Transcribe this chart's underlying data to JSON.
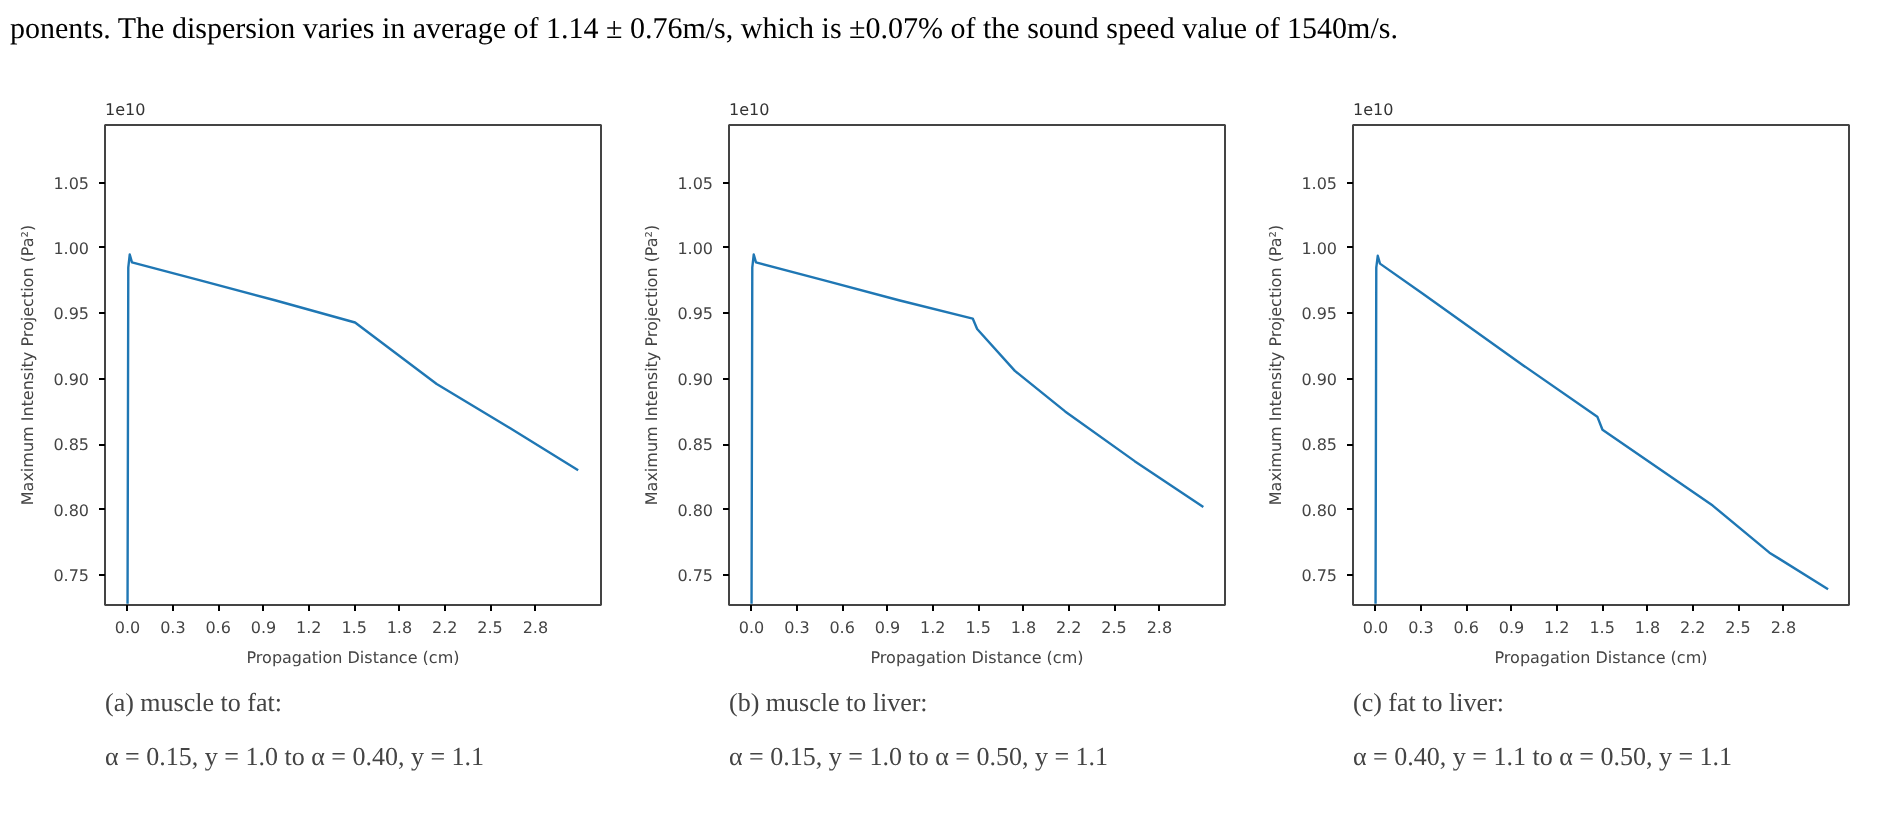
{
  "chart_data": [
    {
      "type": "line",
      "title": "(a) muscle to fat:",
      "subtitle": "α = 0.15, y = 1.0 to α = 0.40, y = 1.1",
      "xlabel": "Propagation Distance (cm)",
      "ylabel": "Maximum Intensity Projection (Pa²)",
      "annotations": [
        "ponents. The dispersion varies in average of 1.14 ± 0.76m/s, which is ±0.07% of the sound speed value of 1540m/s.",
        "1e10"
      ],
      "x": [
        0,
        0.005,
        0.015,
        0.03,
        0.5,
        1.0,
        1.544,
        2.098,
        2.6,
        3.058
      ],
      "series": [
        {
          "color": "#1f77b4",
          "values": [
            0.728,
            0.985,
            0.995,
            0.989,
            0.975,
            0.96,
            0.943,
            0.896,
            0.862,
            0.83
          ]
        }
      ],
      "xlim": [
        -0.153,
        3.213
      ],
      "ylim": [
        0.727,
        1.094
      ],
      "xticks": [
        {
          "value": 0,
          "label": "0.0"
        },
        {
          "value": 0.3075,
          "label": "0.3"
        },
        {
          "value": 0.615,
          "label": "0.6"
        },
        {
          "value": 0.9225,
          "label": "0.9"
        },
        {
          "value": 1.23,
          "label": "1.2"
        },
        {
          "value": 1.5375,
          "label": "1.5"
        },
        {
          "value": 1.845,
          "label": "1.8"
        },
        {
          "value": 2.1525,
          "label": "2.2"
        },
        {
          "value": 2.46,
          "label": "2.5"
        },
        {
          "value": 2.7675,
          "label": "2.8"
        }
      ],
      "yticks": [
        0.75,
        {
          "value": 0.8,
          "label": "0.80"
        },
        0.85,
        {
          "value": 0.9,
          "label": "0.90"
        },
        0.95,
        {
          "value": 1.0,
          "label": "1.00"
        },
        1.05
      ],
      "grid": false,
      "marker": "none",
      "line_style": "solid"
    },
    {
      "type": "line",
      "title": "(b) muscle to liver:",
      "subtitle": "α = 0.15, y = 1.0 to α = 0.50, y = 1.1",
      "xlabel": "Propagation Distance (cm)",
      "ylabel": "Maximum Intensity Projection (Pa²)",
      "annotations": [
        "1e10"
      ],
      "x": [
        0,
        0.005,
        0.015,
        0.03,
        0.5,
        1.0,
        1.501,
        1.531,
        1.787,
        2.128,
        2.6,
        3.066
      ],
      "series": [
        {
          "color": "#1f77b4",
          "values": [
            0.728,
            0.985,
            0.995,
            0.989,
            0.975,
            0.96,
            0.946,
            0.938,
            0.906,
            0.875,
            0.837,
            0.802
          ]
        }
      ],
      "xlim": [
        -0.153,
        3.213
      ],
      "ylim": [
        0.727,
        1.094
      ],
      "xticks": [
        {
          "value": 0,
          "label": "0.0"
        },
        {
          "value": 0.3075,
          "label": "0.3"
        },
        {
          "value": 0.615,
          "label": "0.6"
        },
        {
          "value": 0.9225,
          "label": "0.9"
        },
        {
          "value": 1.23,
          "label": "1.2"
        },
        {
          "value": 1.5375,
          "label": "1.5"
        },
        {
          "value": 1.845,
          "label": "1.8"
        },
        {
          "value": 2.1525,
          "label": "2.2"
        },
        {
          "value": 2.46,
          "label": "2.5"
        },
        {
          "value": 2.7675,
          "label": "2.8"
        }
      ],
      "yticks": [
        0.75,
        {
          "value": 0.8,
          "label": "0.80"
        },
        0.85,
        {
          "value": 0.9,
          "label": "0.90"
        },
        0.95,
        {
          "value": 1.0,
          "label": "1.00"
        },
        1.05
      ],
      "grid": false,
      "marker": "none",
      "line_style": "solid"
    },
    {
      "type": "line",
      "title": "(c) fat to liver:",
      "subtitle": "α = 0.40, y = 1.1 to α = 0.50, y = 1.1",
      "xlabel": "Propagation Distance (cm)",
      "ylabel": "Maximum Intensity Projection (Pa²)",
      "annotations": [
        "1e10"
      ],
      "x": [
        0,
        0.005,
        0.015,
        0.03,
        0.321,
        1.005,
        1.505,
        1.54,
        2.288,
        2.673,
        3.071
      ],
      "series": [
        {
          "color": "#1f77b4",
          "values": [
            0.728,
            0.985,
            0.994,
            0.988,
            0.965,
            0.91,
            0.871,
            0.861,
            0.803,
            0.767,
            0.739
          ]
        }
      ],
      "xlim": [
        -0.153,
        3.213
      ],
      "ylim": [
        0.727,
        1.094
      ],
      "xticks": [
        {
          "value": 0,
          "label": "0.0"
        },
        {
          "value": 0.3075,
          "label": "0.3"
        },
        {
          "value": 0.615,
          "label": "0.6"
        },
        {
          "value": 0.9225,
          "label": "0.9"
        },
        {
          "value": 1.23,
          "label": "1.2"
        },
        {
          "value": 1.5375,
          "label": "1.5"
        },
        {
          "value": 1.845,
          "label": "1.8"
        },
        {
          "value": 2.1525,
          "label": "2.2"
        },
        {
          "value": 2.46,
          "label": "2.5"
        },
        {
          "value": 2.7675,
          "label": "2.8"
        }
      ],
      "yticks": [
        0.75,
        {
          "value": 0.8,
          "label": "0.80"
        },
        0.85,
        {
          "value": 0.9,
          "label": "0.90"
        },
        0.95,
        {
          "value": 1.0,
          "label": "1.00"
        },
        1.05
      ],
      "grid": false,
      "marker": "none",
      "line_style": "solid"
    }
  ]
}
